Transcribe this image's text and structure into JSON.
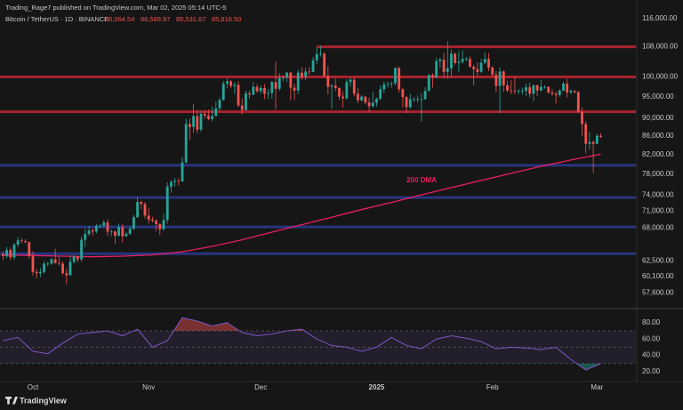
{
  "header": {
    "publisher": "Trading_Rage7 published on TradingView.com, Mar 02, 2025 05:14 UTC-5",
    "brand": "TradingView"
  },
  "chart_data": [
    {
      "type": "candlestick",
      "title": "Bitcoin / TetherUS · 1D · BINANCE",
      "legend_ohlc": {
        "values": [
          86064.54,
          86589.97,
          85531.67,
          85816.5
        ],
        "value_labels": [
          "86,064.54",
          "86,589.97",
          "85,531.67",
          "85,816.50"
        ]
      },
      "up_color": "#26a69a",
      "down_color": "#ef5350",
      "x": [
        0,
        1,
        2,
        3,
        4,
        5,
        6,
        7,
        8,
        9,
        10,
        11,
        12,
        13,
        14,
        15,
        16,
        17,
        18,
        19,
        20,
        21,
        22,
        23,
        24,
        25,
        26,
        27,
        28,
        29,
        30,
        31,
        32,
        33,
        34,
        35,
        36,
        37,
        38,
        39,
        40,
        41,
        42,
        43,
        44,
        45,
        46,
        47,
        48,
        49,
        50,
        51,
        52,
        53,
        54,
        55,
        56,
        57,
        58,
        59,
        60,
        61,
        62,
        63,
        64,
        65,
        66,
        67,
        68,
        69,
        70,
        71,
        72,
        73,
        74,
        75,
        76,
        77,
        78,
        79,
        80,
        81,
        82,
        83,
        84,
        85,
        86,
        87,
        88,
        89,
        90,
        91,
        92,
        93,
        94,
        95,
        96,
        97,
        98,
        99,
        100,
        101,
        102,
        103,
        104,
        105,
        106,
        107,
        108,
        109,
        110,
        111,
        112,
        113,
        114,
        115,
        116,
        117,
        118,
        119,
        120,
        121,
        122,
        123,
        124,
        125,
        126,
        127,
        128,
        129,
        130,
        131,
        132,
        133,
        134,
        135,
        136,
        137,
        138,
        139,
        140,
        141,
        142,
        143,
        144,
        145,
        146,
        147,
        148,
        149,
        150,
        151,
        152,
        153,
        154,
        155,
        156,
        157,
        158,
        159,
        160
      ],
      "open": [
        63600,
        63300,
        64300,
        63100,
        65200,
        65900,
        65800,
        65600,
        63300,
        60800,
        60600,
        60800,
        62100,
        62100,
        62800,
        62200,
        62100,
        60600,
        60300,
        62400,
        63200,
        62800,
        66000,
        67000,
        67600,
        67400,
        68400,
        68400,
        69000,
        67400,
        67400,
        66700,
        68200,
        66600,
        67000,
        67900,
        69900,
        72700,
        72300,
        70200,
        69500,
        69300,
        68700,
        67800,
        69400,
        75600,
        76500,
        76700,
        76600,
        80400,
        88700,
        88000,
        90500,
        87400,
        91000,
        90600,
        89800,
        90500,
        92300,
        94300,
        98300,
        98900,
        97700,
        98000,
        93000,
        91900,
        95900,
        95600,
        97500,
        96400,
        97200,
        95800,
        96000,
        98700,
        97000,
        99800,
        99900,
        101100,
        97300,
        96600,
        101100,
        100000,
        101400,
        101300,
        104300,
        106000,
        106100,
        100200,
        97500,
        97800,
        97200,
        95100,
        94700,
        98700,
        99300,
        95800,
        94200,
        95100,
        93700,
        92800,
        93600,
        94600,
        96900,
        98100,
        98200,
        98400,
        102300,
        96900,
        95000,
        92600,
        94500,
        94500,
        94500,
        94500,
        96500,
        100500,
        99900,
        104100,
        104500,
        101300,
        102200,
        106100,
        103600,
        103900,
        104700,
        104700,
        102600,
        102000,
        101300,
        103700,
        104700,
        102400,
        100600,
        97700,
        101400,
        97900,
        96600,
        96500,
        96400,
        96500,
        96500,
        97400,
        95800,
        97900,
        96600,
        97500,
        97500,
        96100,
        95800,
        95500,
        96600,
        98300,
        96100,
        96500,
        96200,
        91500,
        88700,
        84300,
        84700,
        84300,
        86064.54
      ],
      "high": [
        64100,
        64800,
        64700,
        65500,
        66500,
        66300,
        66100,
        65700,
        64100,
        61300,
        61400,
        62500,
        62400,
        63000,
        64500,
        63200,
        62500,
        61300,
        63400,
        63500,
        63300,
        66500,
        67900,
        68400,
        68000,
        68700,
        68700,
        69400,
        69500,
        67800,
        67600,
        68800,
        68800,
        67400,
        68300,
        70300,
        73600,
        72900,
        72700,
        71600,
        70000,
        69600,
        68900,
        70500,
        76400,
        76900,
        77300,
        77200,
        81500,
        89900,
        89900,
        93300,
        91800,
        91800,
        91900,
        92000,
        92700,
        94000,
        94900,
        99000,
        99600,
        99200,
        98700,
        98900,
        94700,
        96600,
        96600,
        98700,
        98200,
        97900,
        98200,
        96900,
        99000,
        104000,
        101000,
        100500,
        101300,
        101300,
        98300,
        101800,
        102500,
        102400,
        102600,
        105200,
        107800,
        108300,
        106500,
        102800,
        98200,
        99500,
        97400,
        96400,
        99400,
        99900,
        99900,
        97300,
        95500,
        95200,
        94900,
        96200,
        94900,
        97800,
        98900,
        98800,
        98800,
        102500,
        102700,
        97300,
        95300,
        95800,
        95000,
        95400,
        95900,
        97400,
        100700,
        100900,
        105000,
        105000,
        106300,
        109600,
        107200,
        106400,
        106800,
        107100,
        105300,
        105400,
        103200,
        103800,
        104800,
        106500,
        106300,
        102800,
        101500,
        102500,
        101700,
        99000,
        99200,
        100100,
        96900,
        97300,
        98300,
        98500,
        98100,
        98100,
        99400,
        97900,
        97700,
        96900,
        96300,
        96900,
        98800,
        99500,
        96900,
        96700,
        96500,
        92500,
        89300,
        87000,
        85100,
        86500,
        86589.97
      ],
      "low": [
        62700,
        63000,
        62700,
        62700,
        64800,
        65400,
        65400,
        62900,
        60200,
        59800,
        60000,
        60500,
        61700,
        61900,
        62100,
        61800,
        60300,
        58900,
        60200,
        62100,
        62300,
        62400,
        64800,
        66700,
        66700,
        67100,
        68000,
        68000,
        66600,
        66600,
        65300,
        66500,
        65500,
        66500,
        66800,
        67600,
        69800,
        71400,
        69700,
        68800,
        69000,
        67500,
        66800,
        67500,
        68800,
        74400,
        75600,
        75800,
        76500,
        80200,
        85100,
        86700,
        86600,
        86900,
        89800,
        89500,
        89300,
        90400,
        91800,
        94100,
        97200,
        97100,
        95700,
        92600,
        90800,
        91700,
        94600,
        95400,
        96000,
        95800,
        94500,
        94500,
        94600,
        92000,
        96500,
        98900,
        98700,
        94200,
        94300,
        95700,
        99300,
        99200,
        100600,
        101200,
        103300,
        105300,
        100000,
        95600,
        92200,
        96400,
        94300,
        92500,
        94400,
        97600,
        95200,
        93500,
        93900,
        93300,
        91500,
        92500,
        92700,
        94200,
        96000,
        97300,
        97300,
        97900,
        96100,
        92500,
        91200,
        92200,
        93800,
        93700,
        89200,
        94300,
        96400,
        97300,
        99700,
        102300,
        99600,
        99500,
        100000,
        103200,
        101200,
        103500,
        104100,
        102400,
        97800,
        100200,
        101000,
        103300,
        101500,
        100100,
        96100,
        91200,
        96200,
        96200,
        95700,
        95700,
        95700,
        95600,
        95300,
        94900,
        94100,
        95200,
        96300,
        97000,
        95900,
        95300,
        93400,
        95000,
        96400,
        94900,
        95800,
        95900,
        91300,
        86100,
        82300,
        83000,
        78300,
        84200,
        85531.67
      ],
      "close": [
        63300,
        64300,
        63100,
        65200,
        65900,
        65800,
        65600,
        63300,
        60800,
        60600,
        60800,
        62100,
        62100,
        62800,
        62200,
        62100,
        60600,
        60300,
        62400,
        63200,
        62800,
        66000,
        67000,
        67600,
        67400,
        68400,
        68400,
        69000,
        67400,
        67400,
        66700,
        68200,
        66600,
        67000,
        67900,
        69900,
        72700,
        72300,
        70200,
        69500,
        69300,
        68700,
        67800,
        69400,
        75600,
        76500,
        76700,
        76600,
        80400,
        88700,
        88000,
        90500,
        87400,
        91000,
        90600,
        89800,
        90500,
        92300,
        94300,
        98300,
        98900,
        97700,
        98000,
        93000,
        91900,
        95900,
        95600,
        97500,
        96400,
        97200,
        95800,
        96000,
        98700,
        97000,
        99800,
        99900,
        101100,
        97300,
        96600,
        101100,
        100000,
        101400,
        101300,
        104300,
        106000,
        106100,
        100200,
        97500,
        97800,
        97200,
        95100,
        94700,
        98700,
        99300,
        95800,
        94200,
        95100,
        93700,
        92800,
        93600,
        94600,
        96900,
        98100,
        98200,
        98400,
        102300,
        96900,
        95000,
        92600,
        94500,
        94500,
        94500,
        94500,
        96500,
        100500,
        99900,
        104100,
        104500,
        101300,
        102200,
        106100,
        103600,
        103900,
        104700,
        104700,
        102600,
        102000,
        101300,
        103700,
        104700,
        102400,
        100600,
        97700,
        101400,
        97900,
        96600,
        96500,
        96400,
        96500,
        96500,
        97400,
        95800,
        97900,
        96600,
        97500,
        97500,
        96100,
        95800,
        95500,
        96600,
        98300,
        96100,
        96500,
        96200,
        91500,
        88700,
        84300,
        84700,
        84300,
        86064.54,
        85816.5
      ],
      "xlim": [
        -0.8,
        169.4
      ],
      "xticks": [
        {
          "value": 8,
          "label": "Oct"
        },
        {
          "value": 39,
          "label": "Nov"
        },
        {
          "value": 69,
          "label": "Dec"
        },
        {
          "value": 100,
          "label": "2025"
        },
        {
          "value": 131,
          "label": "Feb"
        },
        {
          "value": 159,
          "label": "Mar"
        }
      ],
      "ylim": [
        56000,
        119500
      ],
      "log_scale": true,
      "yticks": [
        {
          "value": 116000,
          "label": "116,000.00"
        },
        {
          "value": 108000,
          "label": "108,000.00"
        },
        {
          "value": 100000,
          "label": "100,000.00"
        },
        {
          "value": 95000,
          "label": "95,000.00"
        },
        {
          "value": 90000,
          "label": "90,000.00"
        },
        {
          "value": 86000,
          "label": "86,000.00"
        },
        {
          "value": 82000,
          "label": "82,000.00"
        },
        {
          "value": 78000,
          "label": "78,000.00"
        },
        {
          "value": 74000,
          "label": "74,000.00"
        },
        {
          "value": 71000,
          "label": "71,000.00"
        },
        {
          "value": 68000,
          "label": "68,000.00"
        },
        {
          "value": 62500,
          "label": "62,500.00"
        },
        {
          "value": 60100,
          "label": "60,100.00"
        },
        {
          "value": 57600,
          "label": "57,600.00"
        }
      ],
      "levels": [
        {
          "value": 108000,
          "x_start": 84,
          "color": "#a8232e"
        },
        {
          "value": 100000,
          "color": "#a8232e"
        },
        {
          "value": 91500,
          "color": "#a8232e"
        },
        {
          "value": 79800,
          "color": "#27357f"
        },
        {
          "value": 73500,
          "color": "#27357f"
        },
        {
          "value": 68200,
          "color": "#27357f"
        },
        {
          "value": 63700,
          "color": "#27357f"
        }
      ],
      "series": [
        {
          "name": "200 DMA",
          "color": "#e91e63",
          "x": [
            0,
            8,
            16,
            24,
            32,
            40,
            48,
            56,
            64,
            72,
            80,
            88,
            96,
            104,
            112,
            120,
            128,
            136,
            144,
            152,
            160
          ],
          "values": [
            63500,
            63400,
            63300,
            63200,
            63300,
            63500,
            64000,
            64900,
            66000,
            67300,
            68600,
            69900,
            71300,
            72600,
            74000,
            75400,
            76800,
            78200,
            79600,
            80900,
            82100
          ]
        }
      ]
    },
    {
      "type": "line",
      "series": [
        {
          "color": "#7e57c2",
          "x": [
            0,
            4,
            8,
            12,
            16,
            20,
            24,
            28,
            32,
            36,
            40,
            44,
            48,
            52,
            56,
            60,
            64,
            68,
            72,
            76,
            80,
            84,
            88,
            92,
            96,
            100,
            104,
            108,
            112,
            116,
            120,
            124,
            128,
            132,
            136,
            140,
            144,
            148,
            152,
            156,
            160
          ],
          "values": [
            58,
            62,
            45,
            42,
            55,
            66,
            68,
            70,
            64,
            72,
            50,
            58,
            86,
            82,
            76,
            80,
            68,
            64,
            66,
            70,
            72,
            60,
            52,
            50,
            45,
            50,
            62,
            52,
            48,
            60,
            64,
            61,
            57,
            48,
            50,
            49,
            47,
            50,
            35,
            22,
            30
          ]
        }
      ],
      "xlim": [
        -0.8,
        169.4
      ],
      "ylim": [
        9,
        94
      ],
      "yticks": [
        {
          "value": 80,
          "label": "80.00"
        },
        {
          "value": 60,
          "label": "60.00"
        },
        {
          "value": 40,
          "label": "40.00"
        },
        {
          "value": 20,
          "label": "20.00"
        }
      ],
      "bands": [
        30,
        50,
        70
      ],
      "overbought_color": "#ef5350",
      "oversold_color": "#26a69a"
    }
  ]
}
